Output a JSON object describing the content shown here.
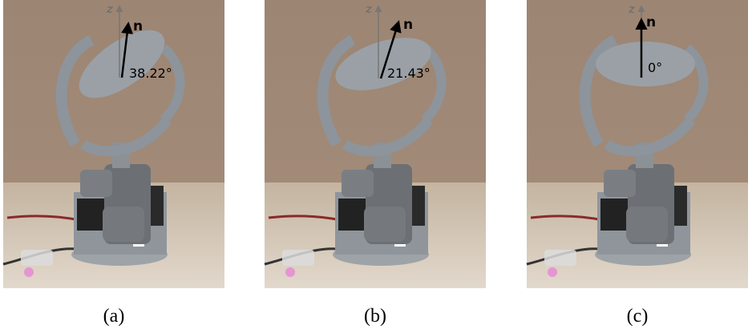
{
  "panels": [
    {
      "label": "(a)",
      "axis": "z",
      "vector": "n",
      "angle": "38.22°"
    },
    {
      "label": "(b)",
      "axis": "z",
      "vector": "n",
      "angle": "21.43°"
    },
    {
      "label": "(c)",
      "axis": "z",
      "vector": "n",
      "angle": "0°"
    }
  ]
}
